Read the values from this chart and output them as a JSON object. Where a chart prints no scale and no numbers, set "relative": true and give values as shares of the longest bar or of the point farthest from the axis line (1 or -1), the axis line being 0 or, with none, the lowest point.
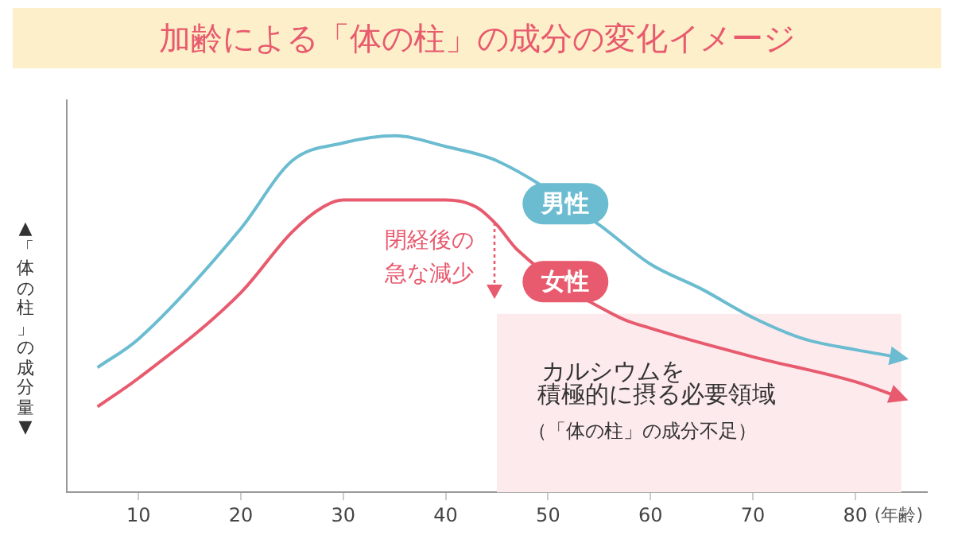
{
  "chart_data": {
    "type": "line",
    "title": "加齢による「体の柱」の成分の変化イメージ",
    "ylabel": "▲「体の柱」の成分量▼",
    "xlabel": "(年齢)",
    "relative": true,
    "tick_labels": "x",
    "grid": false,
    "marker": "none",
    "xlim": [
      3,
      87
    ],
    "xticks": [
      10,
      20,
      30,
      40,
      50,
      60,
      70,
      80
    ],
    "series": [
      {
        "name": "男性",
        "color": "#6bbcd1",
        "x": [
          6,
          10,
          20,
          25,
          30,
          35,
          40,
          45,
          55,
          60,
          65,
          70,
          75,
          80,
          84
        ],
        "values": [
          0.35,
          0.43,
          0.74,
          0.93,
          0.98,
          1,
          0.97,
          0.93,
          0.75,
          0.64,
          0.57,
          0.49,
          0.43,
          0.4,
          0.38
        ]
      },
      {
        "name": "女性",
        "color": "#e85a6e",
        "x": [
          6,
          10,
          20,
          25,
          28,
          30,
          40,
          43,
          45,
          47,
          57,
          60,
          70,
          80,
          84
        ],
        "values": [
          0.24,
          0.32,
          0.56,
          0.73,
          0.8,
          0.82,
          0.82,
          0.8,
          0.75,
          0.68,
          0.49,
          0.46,
          0.38,
          0.31,
          0.27
        ]
      }
    ],
    "bands": [
      {
        "axis": "x",
        "from": 45,
        "to": 84.5,
        "label": "カルシウムを",
        "color": "#fdeaec"
      }
    ],
    "annotations": [
      "閉経後の",
      "急な減少",
      "積極的に摂る必要領域",
      "（「体の柱」の成分不足）"
    ]
  }
}
